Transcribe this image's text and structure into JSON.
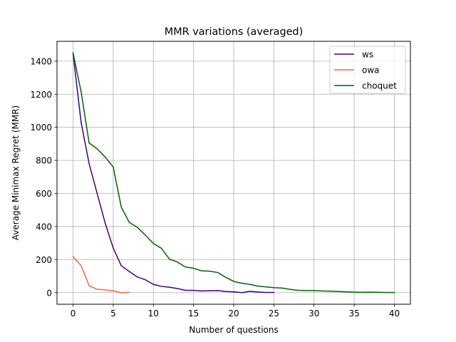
{
  "chart_data": {
    "type": "line",
    "title": "MMR variations (averaged)",
    "xlabel": "Number of questions",
    "ylabel": "Average Minimax Regret (MMR)",
    "xlim": [
      -2,
      42
    ],
    "ylim": [
      -70,
      1520
    ],
    "xticks": [
      0,
      5,
      10,
      15,
      20,
      25,
      30,
      35,
      40
    ],
    "yticks": [
      0,
      200,
      400,
      600,
      800,
      1000,
      1200,
      1400
    ],
    "grid": true,
    "legend_position": "upper-right",
    "series": [
      {
        "name": "ws",
        "color": "#3f007d",
        "x": [
          0,
          1,
          2,
          3,
          4,
          5,
          6,
          7,
          8,
          9,
          10,
          11,
          12,
          13,
          14,
          15,
          16,
          17,
          18,
          19,
          20,
          21,
          22,
          23,
          24,
          25
        ],
        "y": [
          1445,
          1030,
          780,
          600,
          420,
          270,
          163,
          128,
          95,
          78,
          50,
          38,
          33,
          25,
          14,
          14,
          10,
          12,
          13,
          7,
          5,
          0,
          8,
          4,
          1,
          1
        ]
      },
      {
        "name": "owa",
        "color": "#f16745",
        "x": [
          0,
          1,
          2,
          3,
          4,
          5,
          6,
          7
        ],
        "y": [
          218,
          163,
          42,
          20,
          17,
          11,
          0,
          2
        ]
      },
      {
        "name": "choquet",
        "color": "#006400",
        "x": [
          0,
          1,
          2,
          3,
          4,
          5,
          6,
          7,
          8,
          9,
          10,
          11,
          12,
          13,
          14,
          15,
          16,
          17,
          18,
          19,
          20,
          21,
          22,
          23,
          24,
          25,
          26,
          27,
          28,
          29,
          30,
          31,
          32,
          33,
          34,
          35,
          36,
          37,
          38,
          39,
          40
        ],
        "y": [
          1450,
          1215,
          905,
          870,
          820,
          760,
          518,
          425,
          395,
          348,
          298,
          268,
          203,
          185,
          155,
          148,
          132,
          130,
          122,
          93,
          68,
          57,
          50,
          40,
          35,
          30,
          28,
          20,
          14,
          13,
          13,
          10,
          9,
          7,
          5,
          3,
          2,
          3,
          2,
          1,
          1
        ]
      }
    ]
  }
}
